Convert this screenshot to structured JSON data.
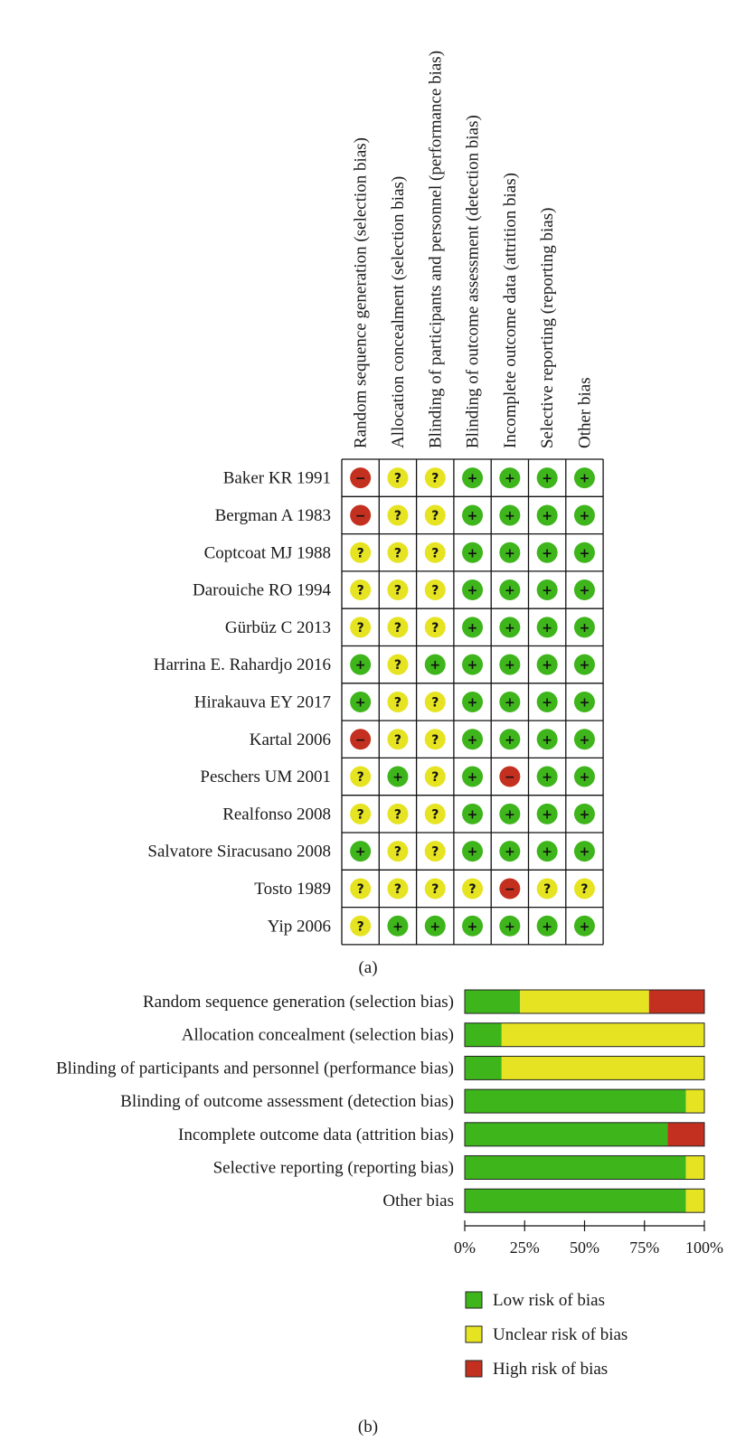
{
  "colors": {
    "low": "#3db51b",
    "unclear": "#e6e322",
    "high": "#c4301f"
  },
  "chart_data": [
    {
      "type": "heatmap",
      "panel_label": "(a)",
      "columns": [
        "Random sequence generation (selection bias)",
        "Allocation concealment (selection bias)",
        "Blinding of participants and personnel (performance bias)",
        "Blinding of outcome assessment (detection bias)",
        "Incomplete outcome data (attrition bias)",
        "Selective reporting (reporting bias)",
        "Other bias"
      ],
      "rows": [
        "Baker KR 1991",
        "Bergman A 1983",
        "Coptcoat MJ 1988",
        "Darouiche RO 1994",
        "Gürbüz C 2013",
        "Harrina E. Rahardjo 2016",
        "Hirakauva EY 2017",
        "Kartal 2006",
        "Peschers UM 2001",
        "Realfonso 2008",
        "Salvatore Siracusano 2008",
        "Tosto 1989",
        "Yip 2006"
      ],
      "values": [
        [
          "high",
          "unclear",
          "unclear",
          "low",
          "low",
          "low",
          "low"
        ],
        [
          "high",
          "unclear",
          "unclear",
          "low",
          "low",
          "low",
          "low"
        ],
        [
          "unclear",
          "unclear",
          "unclear",
          "low",
          "low",
          "low",
          "low"
        ],
        [
          "unclear",
          "unclear",
          "unclear",
          "low",
          "low",
          "low",
          "low"
        ],
        [
          "unclear",
          "unclear",
          "unclear",
          "low",
          "low",
          "low",
          "low"
        ],
        [
          "low",
          "unclear",
          "low",
          "low",
          "low",
          "low",
          "low"
        ],
        [
          "low",
          "unclear",
          "unclear",
          "low",
          "low",
          "low",
          "low"
        ],
        [
          "high",
          "unclear",
          "unclear",
          "low",
          "low",
          "low",
          "low"
        ],
        [
          "unclear",
          "low",
          "unclear",
          "low",
          "high",
          "low",
          "low"
        ],
        [
          "unclear",
          "unclear",
          "unclear",
          "low",
          "low",
          "low",
          "low"
        ],
        [
          "low",
          "unclear",
          "unclear",
          "low",
          "low",
          "low",
          "low"
        ],
        [
          "unclear",
          "unclear",
          "unclear",
          "unclear",
          "high",
          "unclear",
          "unclear"
        ],
        [
          "unclear",
          "low",
          "low",
          "low",
          "low",
          "low",
          "low"
        ]
      ],
      "symbols": {
        "low": "+",
        "unclear": "?",
        "high": "−"
      }
    },
    {
      "type": "bar",
      "stacked": true,
      "orientation": "horizontal",
      "panel_label": "(b)",
      "categories": [
        "Random sequence generation (selection bias)",
        "Allocation concealment (selection bias)",
        "Blinding of participants and personnel (performance bias)",
        "Blinding of outcome assessment (detection bias)",
        "Incomplete outcome data (attrition bias)",
        "Selective reporting (reporting bias)",
        "Other bias"
      ],
      "series": [
        {
          "name": "Low risk of bias",
          "key": "low",
          "values": [
            23.1,
            15.4,
            15.4,
            92.3,
            84.6,
            92.3,
            92.3
          ]
        },
        {
          "name": "Unclear risk of bias",
          "key": "unclear",
          "values": [
            53.8,
            84.6,
            84.6,
            7.7,
            0,
            7.7,
            7.7
          ]
        },
        {
          "name": "High risk of bias",
          "key": "high",
          "values": [
            23.1,
            0,
            0,
            0,
            15.4,
            0,
            0
          ]
        }
      ],
      "xlim": [
        0,
        100
      ],
      "ticks": [
        "0%",
        "25%",
        "50%",
        "75%",
        "100%"
      ],
      "legend": [
        "Low risk of bias",
        "Unclear risk of bias",
        "High risk of bias"
      ],
      "legend_position": "bottom"
    }
  ]
}
